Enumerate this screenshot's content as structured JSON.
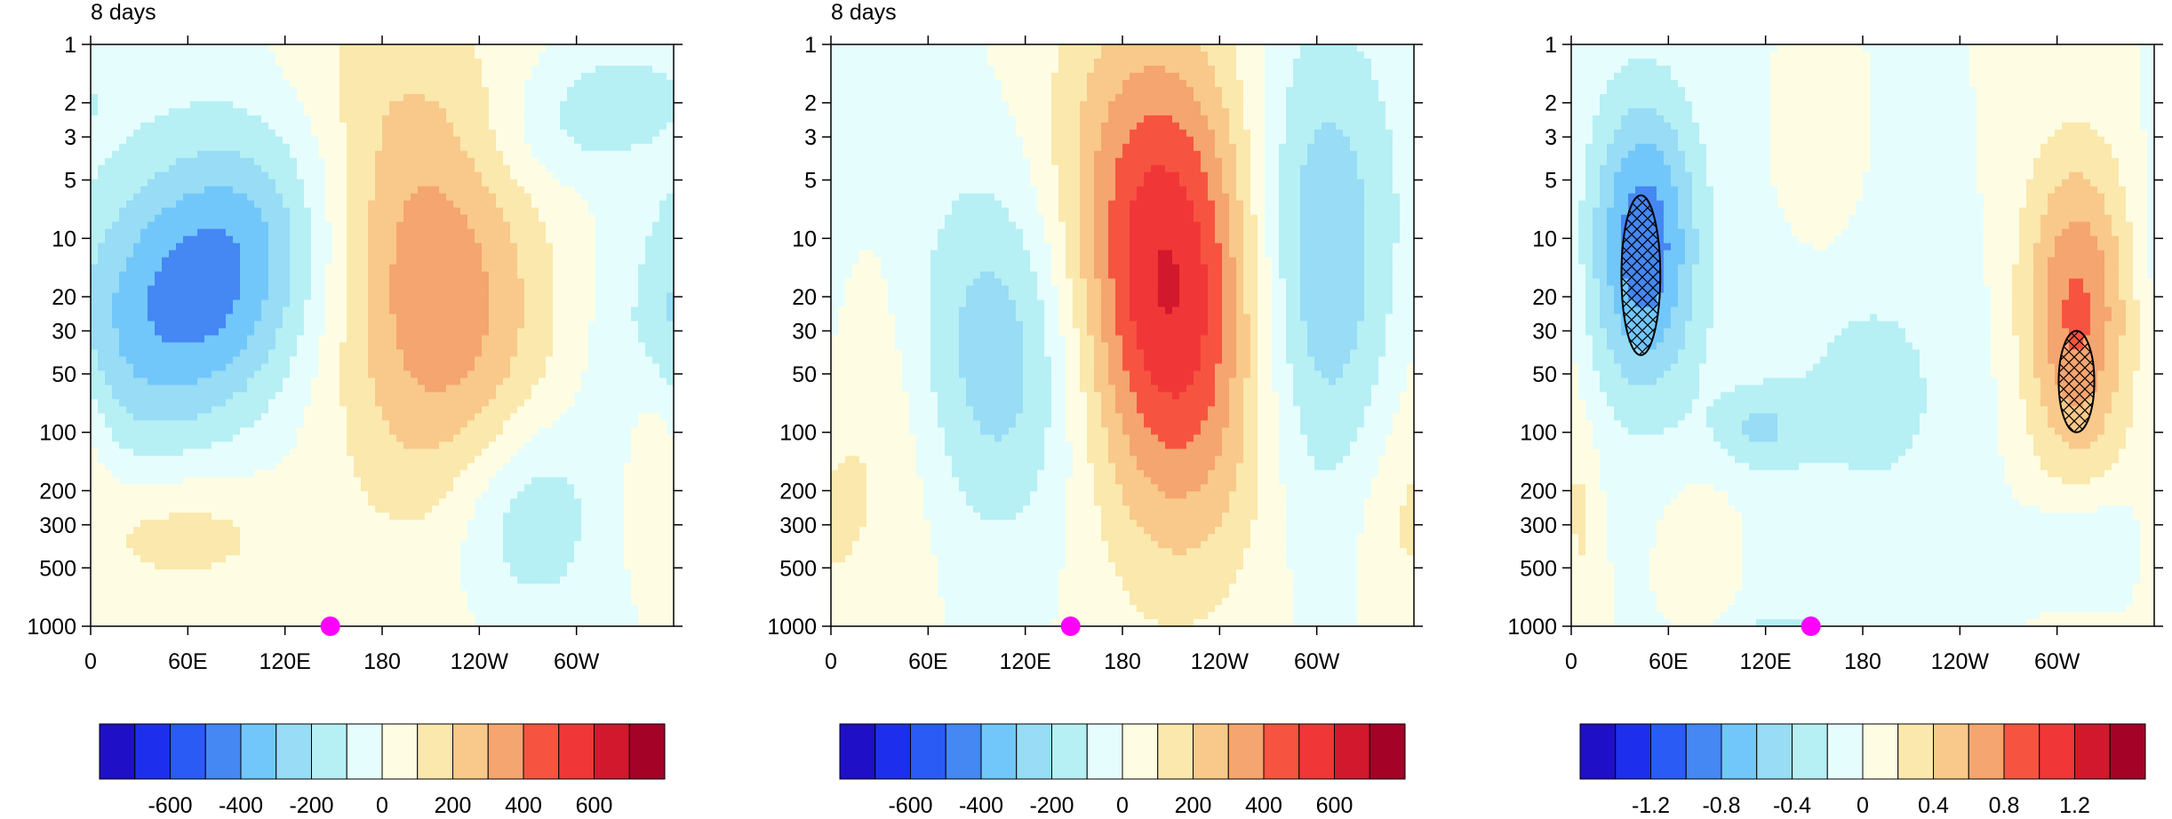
{
  "colors": {
    "palette": [
      "#1f0fc7",
      "#1d2fec",
      "#2a5bf5",
      "#4587f3",
      "#72c7fa",
      "#98dcf5",
      "#b6f0f4",
      "#e6fdfe",
      "#fefde3",
      "#fbe8ad",
      "#f8c98a",
      "#f5a56f",
      "#f65440",
      "#f13638",
      "#d1182d",
      "#a50227"
    ],
    "marker": "#ff00ff",
    "contour": "#555555",
    "hatch": "#000000"
  },
  "chart_data": [
    {
      "type": "heatmap",
      "title": "8 days",
      "xlabel": "",
      "ylabel": "",
      "x_ticks": [
        "0",
        "60E",
        "120E",
        "180",
        "120W",
        "60W"
      ],
      "x_tick_values": [
        0,
        60,
        120,
        180,
        240,
        300
      ],
      "xlim": [
        0,
        360
      ],
      "y_ticks": [
        "1",
        "2",
        "3",
        "5",
        "10",
        "20",
        "30",
        "50",
        "100",
        "200",
        "300",
        "500",
        "1000"
      ],
      "y_tick_values": [
        1,
        2,
        3,
        5,
        10,
        20,
        30,
        50,
        100,
        200,
        300,
        500,
        1000
      ],
      "ylim": [
        1,
        1000
      ],
      "y_scale": "log",
      "y_reversed": true,
      "contour_levels": [
        -700,
        -600,
        -500,
        -400,
        -300,
        -200,
        -100,
        0,
        100,
        200,
        300,
        400,
        500,
        600,
        700
      ],
      "colorbar_labels": [
        "-600",
        "-400",
        "-200",
        "0",
        "200",
        "400",
        "600"
      ],
      "colorbar_label_values": [
        -600,
        -400,
        -200,
        0,
        200,
        400,
        600
      ],
      "grid": false,
      "marker": {
        "lon": 148,
        "p": 1000
      },
      "features": [
        {
          "kind": "blob",
          "lon0": 95,
          "lon1": 42,
          "p_top": 3,
          "p_bot": 100,
          "lonw": 55,
          "amp": -470
        },
        {
          "kind": "blob",
          "lon0": 190,
          "lon1": 230,
          "p_top": 1,
          "p_bot": 300,
          "lonw": 50,
          "amp": 390
        },
        {
          "kind": "blob",
          "lon0": 268,
          "lon1": 268,
          "p_top": 80,
          "p_bot": 900,
          "lonw": 35,
          "amp": -260
        },
        {
          "kind": "blob",
          "lon0": 330,
          "lon1": 290,
          "p_top": 1,
          "p_bot": 5,
          "lonw": 40,
          "amp": -160
        },
        {
          "kind": "blob",
          "lon0": 55,
          "lon1": 55,
          "p_top": 150,
          "p_bot": 700,
          "lonw": 50,
          "amp": 160
        },
        {
          "kind": "blob",
          "lon0": 350,
          "lon1": 350,
          "p_top": 40,
          "p_bot": 250,
          "lonw": 15,
          "amp": 140
        }
      ]
    },
    {
      "type": "heatmap",
      "title": "8 days",
      "xlabel": "",
      "ylabel": "",
      "x_ticks": [
        "0",
        "60E",
        "120E",
        "180",
        "120W",
        "60W"
      ],
      "x_tick_values": [
        0,
        60,
        120,
        180,
        240,
        300
      ],
      "xlim": [
        0,
        360
      ],
      "y_ticks": [
        "1",
        "2",
        "3",
        "5",
        "10",
        "20",
        "30",
        "50",
        "100",
        "200",
        "300",
        "500",
        "1000"
      ],
      "y_tick_values": [
        1,
        2,
        3,
        5,
        10,
        20,
        30,
        50,
        100,
        200,
        300,
        500,
        1000
      ],
      "ylim": [
        1,
        1000
      ],
      "y_scale": "log",
      "y_reversed": true,
      "contour_levels": [
        -700,
        -600,
        -500,
        -400,
        -300,
        -200,
        -100,
        0,
        100,
        200,
        300,
        400,
        500,
        600,
        700
      ],
      "colorbar_labels": [
        "-600",
        "-400",
        "-200",
        "0",
        "200",
        "400",
        "600"
      ],
      "colorbar_label_values": [
        -600,
        -400,
        -200,
        0,
        200,
        400,
        600
      ],
      "grid": false,
      "marker": {
        "lon": 148,
        "p": 1000
      },
      "features": [
        {
          "kind": "blob",
          "lon0": 200,
          "lon1": 215,
          "p_top": 1,
          "p_bot": 300,
          "lonw": 45,
          "amp": 640
        },
        {
          "kind": "blob",
          "lon0": 105,
          "lon1": 105,
          "p_top": 5,
          "p_bot": 300,
          "lonw": 45,
          "amp": -300
        },
        {
          "kind": "blob",
          "lon0": 300,
          "lon1": 300,
          "p_top": 1,
          "p_bot": 200,
          "lonw": 35,
          "amp": -340
        },
        {
          "kind": "blob",
          "lon0": 30,
          "lon1": 30,
          "p_top": 10,
          "p_bot": 800,
          "lonw": 35,
          "amp": 140
        },
        {
          "kind": "blob",
          "lon0": 350,
          "lon1": 350,
          "p_top": 100,
          "p_bot": 900,
          "lonw": 20,
          "amp": 80
        }
      ]
    },
    {
      "type": "heatmap",
      "title": "",
      "xlabel": "",
      "ylabel": "",
      "x_ticks": [
        "0",
        "60E",
        "120E",
        "180",
        "120W",
        "60W"
      ],
      "x_tick_values": [
        0,
        60,
        120,
        180,
        240,
        300
      ],
      "xlim": [
        0,
        360
      ],
      "y_ticks": [
        "1",
        "2",
        "3",
        "5",
        "10",
        "20",
        "30",
        "50",
        "100",
        "200",
        "300",
        "500",
        "1000"
      ],
      "y_tick_values": [
        1,
        2,
        3,
        5,
        10,
        20,
        30,
        50,
        100,
        200,
        300,
        500,
        1000
      ],
      "ylim": [
        1,
        1000
      ],
      "y_scale": "log",
      "y_reversed": true,
      "contour_levels": [
        -1.4,
        -1.2,
        -1.0,
        -0.8,
        -0.6,
        -0.4,
        -0.2,
        0,
        0.2,
        0.4,
        0.6,
        0.8,
        1.0,
        1.2,
        1.4
      ],
      "colorbar_labels": [
        "-1.2",
        "-0.8",
        "-0.4",
        "0",
        "0.4",
        "0.8",
        "1.2"
      ],
      "colorbar_label_values": [
        -1.2,
        -0.8,
        -0.4,
        0,
        0.4,
        0.8,
        1.2
      ],
      "grid": false,
      "marker": {
        "lon": 148,
        "p": 1000
      },
      "hatched_regions": [
        {
          "lon_center": 43,
          "p_top": 6,
          "p_bot": 40,
          "lon_halfwidth": 12
        },
        {
          "lon_center": 312,
          "p_top": 30,
          "p_bot": 100,
          "lon_halfwidth": 11
        }
      ],
      "features": [
        {
          "kind": "blob",
          "lon0": 45,
          "lon1": 45,
          "p_top": 2,
          "p_bot": 60,
          "lonw": 24,
          "amp": -0.95
        },
        {
          "kind": "blob",
          "lon0": 312,
          "lon1": 312,
          "p_top": 4,
          "p_bot": 150,
          "lonw": 24,
          "amp": 0.85
        },
        {
          "kind": "blob",
          "lon0": 115,
          "lon1": 115,
          "p_top": 60,
          "p_bot": 150,
          "lonw": 20,
          "amp": -0.35
        },
        {
          "kind": "blob",
          "lon0": 185,
          "lon1": 185,
          "p_top": 10,
          "p_bot": 400,
          "lonw": 50,
          "amp": -0.25
        },
        {
          "kind": "blob",
          "lon0": 315,
          "lon1": 315,
          "p_top": 200,
          "p_bot": 600,
          "lonw": 25,
          "amp": -0.25
        },
        {
          "kind": "blob",
          "lon0": 155,
          "lon1": 155,
          "p_top": 2,
          "p_bot": 12,
          "lonw": 15,
          "amp": 0.2
        },
        {
          "kind": "blob",
          "lon0": 80,
          "lon1": 80,
          "p_top": 200,
          "p_bot": 600,
          "lonw": 14,
          "amp": 0.2
        },
        {
          "kind": "blob",
          "lon0": 130,
          "lon1": 130,
          "p_top": 900,
          "p_bot": 1000,
          "lonw": 14,
          "amp": -0.35
        },
        {
          "kind": "blob",
          "lon0": 5,
          "lon1": 5,
          "p_top": 100,
          "p_bot": 900,
          "lonw": 8,
          "amp": 0.25
        }
      ]
    }
  ]
}
